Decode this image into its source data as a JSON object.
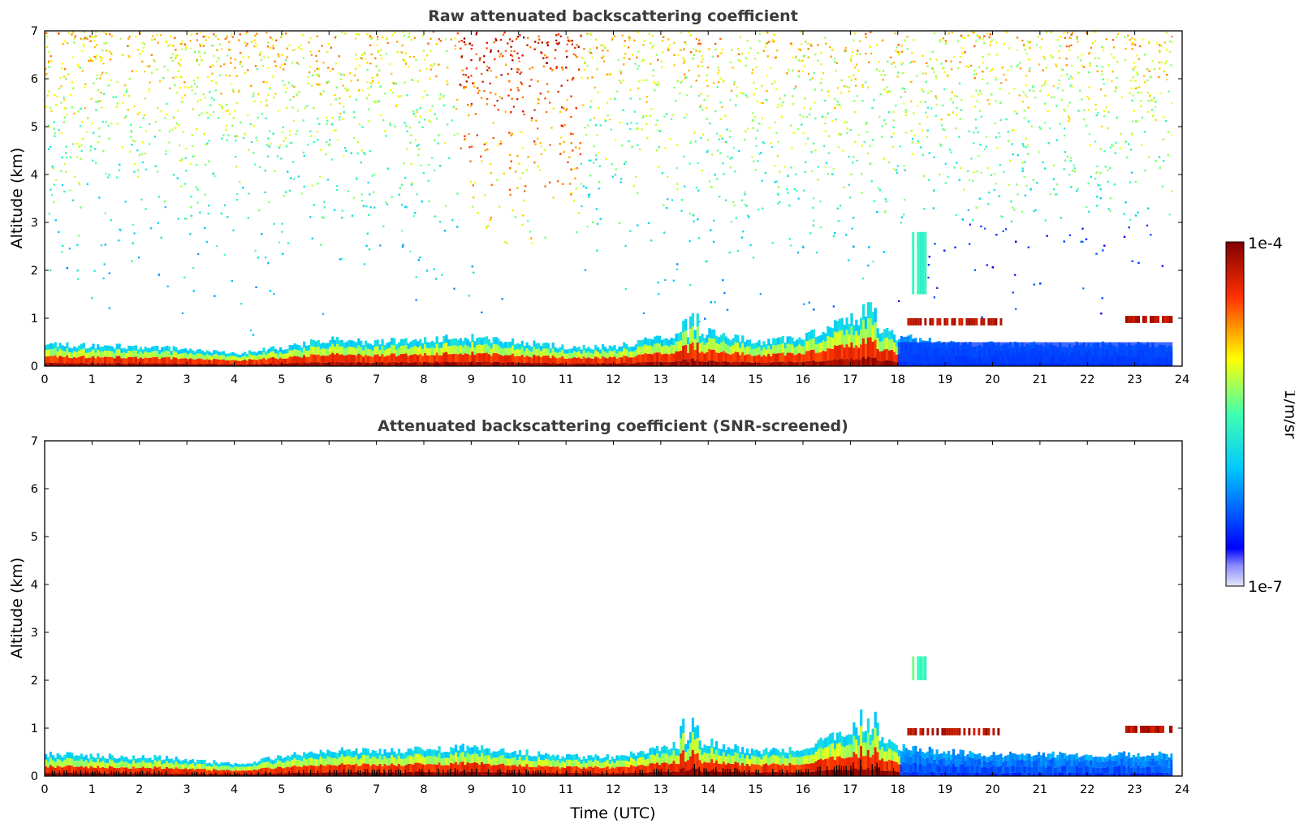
{
  "chart_data": [
    {
      "type": "heatmap",
      "panel": "top",
      "title": "Raw attenuated backscattering coefficient",
      "xlabel": "",
      "ylabel": "Altitude (km)",
      "xlim": [
        0,
        24
      ],
      "ylim": [
        0,
        7
      ],
      "x_ticks": [
        "0",
        "1",
        "2",
        "3",
        "4",
        "5",
        "6",
        "7",
        "8",
        "9",
        "10",
        "11",
        "12",
        "13",
        "14",
        "15",
        "16",
        "17",
        "18",
        "19",
        "20",
        "21",
        "22",
        "23",
        "24"
      ],
      "y_ticks": [
        "0",
        "1",
        "2",
        "3",
        "4",
        "5",
        "6",
        "7"
      ],
      "grid": false,
      "data_end_hour": 23.8,
      "boundary_layer_top_km": [
        0.45,
        0.42,
        0.4,
        0.35,
        0.25,
        0.4,
        0.55,
        0.5,
        0.55,
        0.6,
        0.5,
        0.4,
        0.4,
        0.6,
        0.7,
        0.5,
        0.6,
        1.0,
        0.6,
        0.5,
        0.45,
        0.45,
        0.45,
        0.45
      ],
      "features": [
        {
          "type": "noise_plume",
          "x": [
            8.7,
            11.3
          ],
          "y": [
            3,
            7
          ],
          "level": "high"
        },
        {
          "type": "elevated_layer",
          "x": [
            18.2,
            20.2
          ],
          "y": [
            0.85,
            1.0
          ],
          "level": "high"
        },
        {
          "type": "elevated_layer",
          "x": [
            22.8,
            23.8
          ],
          "y": [
            0.9,
            1.05
          ],
          "level": "high"
        },
        {
          "type": "plume",
          "x": [
            18.3,
            18.6
          ],
          "y": [
            1.5,
            2.8
          ],
          "level": "medium"
        },
        {
          "type": "low_signal_region",
          "x": [
            18.0,
            23.8
          ],
          "y": [
            0,
            0.5
          ],
          "level": "low"
        }
      ]
    },
    {
      "type": "heatmap",
      "panel": "bottom",
      "title": "Attenuated backscattering coefficient (SNR-screened)",
      "xlabel": "Time (UTC)",
      "ylabel": "Altitude (km)",
      "xlim": [
        0,
        24
      ],
      "ylim": [
        0,
        7
      ],
      "x_ticks": [
        "0",
        "1",
        "2",
        "3",
        "4",
        "5",
        "6",
        "7",
        "8",
        "9",
        "10",
        "11",
        "12",
        "13",
        "14",
        "15",
        "16",
        "17",
        "18",
        "19",
        "20",
        "21",
        "22",
        "23",
        "24"
      ],
      "y_ticks": [
        "0",
        "1",
        "2",
        "3",
        "4",
        "5",
        "6",
        "7"
      ],
      "grid": false,
      "data_end_hour": 23.8,
      "boundary_layer_top_km": [
        0.45,
        0.42,
        0.4,
        0.35,
        0.25,
        0.4,
        0.55,
        0.5,
        0.55,
        0.6,
        0.5,
        0.4,
        0.4,
        0.6,
        0.7,
        0.5,
        0.6,
        1.0,
        0.6,
        0.5,
        0.45,
        0.45,
        0.45,
        0.45
      ],
      "features": [
        {
          "type": "elevated_layer",
          "x": [
            18.2,
            20.2
          ],
          "y": [
            0.85,
            1.0
          ],
          "level": "high"
        },
        {
          "type": "elevated_layer",
          "x": [
            22.8,
            23.8
          ],
          "y": [
            0.9,
            1.05
          ],
          "level": "high"
        },
        {
          "type": "plume",
          "x": [
            18.3,
            18.6
          ],
          "y": [
            2.0,
            2.5
          ],
          "level": "medium"
        }
      ]
    }
  ],
  "colorbar": {
    "max_label": "1e-4",
    "min_label": "1e-7",
    "unit_label": "1/m/sr",
    "colormap": "jet"
  }
}
